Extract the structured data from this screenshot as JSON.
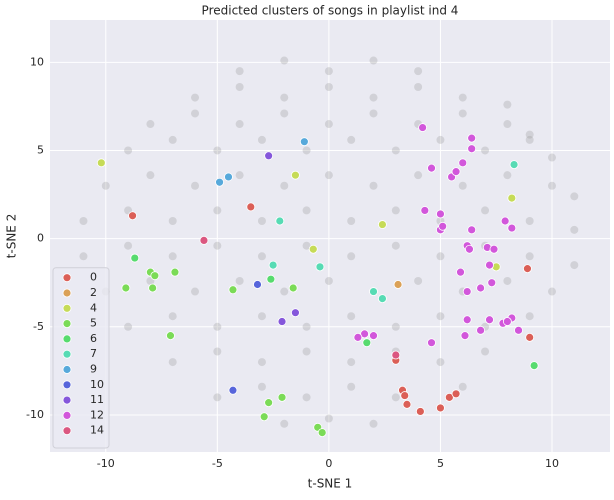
{
  "chart_data": {
    "type": "scatter",
    "title": "Predicted clusters of songs in playlist ind 4",
    "x_label": "t-SNE 1",
    "y_label": "t-SNE 2",
    "xlim": [
      -12.5,
      12.6
    ],
    "ylim": [
      -12.1,
      12.4
    ],
    "xticks": [
      -10,
      -5,
      0,
      5,
      10
    ],
    "yticks": [
      -10,
      -5,
      0,
      5,
      10
    ],
    "grid": true,
    "legend": "lower left",
    "series": [
      {
        "color": "#999999",
        "x": [
          -4,
          -2,
          0,
          2,
          4,
          -6,
          -4,
          -2,
          0,
          2,
          4,
          6,
          8,
          -8,
          -6,
          -4,
          -2,
          0,
          2,
          4,
          6,
          8,
          9,
          -9,
          -7,
          -5,
          -3,
          -1,
          1,
          3,
          5,
          7,
          9,
          10,
          -10,
          -8,
          -6,
          -4,
          -2,
          0,
          2,
          4,
          6,
          8,
          10,
          11,
          -11,
          -9,
          -7,
          -5,
          -3,
          -1,
          1,
          3,
          5,
          7,
          9,
          11,
          -11,
          -9,
          -7,
          -5,
          -3,
          -1,
          1,
          3,
          5,
          7,
          9,
          11,
          -10,
          -8,
          -6,
          -4,
          -2,
          0,
          2,
          4,
          6,
          8,
          10,
          -9,
          -7,
          -5,
          -3,
          -1,
          1,
          3,
          5,
          7,
          9,
          -7,
          -5,
          -3,
          -1,
          1,
          3,
          5,
          7,
          -5,
          -3,
          -1,
          1,
          3,
          6,
          -2,
          0,
          2
        ],
        "y": [
          9.5,
          10.1,
          9.5,
          10.1,
          9.5,
          8,
          8.6,
          8,
          8.6,
          8,
          8.6,
          8,
          7.6,
          6.5,
          7.1,
          6.5,
          7.1,
          6.5,
          7.1,
          6.5,
          7.1,
          6.5,
          5.9,
          5,
          5.6,
          5,
          5.6,
          5,
          5.6,
          5,
          5.6,
          5,
          5.6,
          4.6,
          3,
          3.6,
          3,
          3.6,
          3,
          3.6,
          3,
          3.6,
          3,
          3.6,
          3,
          2.4,
          1,
          1.6,
          1,
          1.6,
          1,
          1.6,
          1,
          1.6,
          1,
          1.6,
          1,
          0.5,
          -1,
          -0.4,
          -1,
          -0.4,
          -1,
          -0.4,
          -1,
          -0.4,
          -1,
          -0.4,
          -1,
          -1.5,
          -3,
          -2.4,
          -3,
          -2.4,
          -3,
          -2.4,
          -3,
          -2.4,
          -3,
          -2.4,
          -3,
          -5,
          -4.4,
          -5,
          -4.4,
          -5,
          -4.4,
          -5,
          -4.4,
          -5,
          -4.4,
          -7,
          -6.4,
          -7,
          -6.4,
          -7,
          -6.4,
          -7,
          -6.4,
          -9,
          -8.4,
          -9,
          -8.4,
          -9,
          -8.4,
          -10.5,
          -10.2,
          -10.5
        ]
      },
      {
        "name": "0",
        "color": "#db5f57",
        "x": [
          -8.8,
          8.9,
          9.0,
          3.3,
          3.4,
          3.5,
          4.1,
          5.0,
          5.4,
          5.7,
          3.0,
          -3.5
        ],
        "y": [
          1.3,
          -1.7,
          -5.6,
          -8.6,
          -8.9,
          -9.4,
          -9.8,
          -9.6,
          -9.0,
          -8.8,
          -6.9,
          1.8
        ]
      },
      {
        "name": "2",
        "color": "#dba157",
        "x": [
          3.1
        ],
        "y": [
          -2.6
        ]
      },
      {
        "name": "4",
        "color": "#c6db57",
        "x": [
          -10.2,
          -1.5,
          2.4,
          7.5,
          8.2,
          -0.7
        ],
        "y": [
          4.3,
          3.6,
          0.8,
          -1.6,
          2.3,
          -0.6
        ]
      },
      {
        "name": "5",
        "color": "#7bdb57",
        "x": [
          -9.1,
          -8.0,
          -7.8,
          -6.9,
          -7.9,
          -4.3,
          -1.6,
          -2.7,
          -2.1,
          -2.9,
          -0.5,
          -0.3,
          -7.1
        ],
        "y": [
          -2.8,
          -1.9,
          -2.1,
          -1.9,
          -2.8,
          -2.9,
          -2.8,
          -9.3,
          -9.0,
          -10.1,
          -10.7,
          -11.0,
          -5.5
        ]
      },
      {
        "name": "6",
        "color": "#57db6e",
        "x": [
          -2.6,
          1.7,
          9.2,
          -8.7
        ],
        "y": [
          -2.3,
          -5.9,
          -7.2,
          -1.1
        ]
      },
      {
        "name": "7",
        "color": "#57dbb4",
        "x": [
          -2.2,
          -2.5,
          -0.4,
          2.0,
          2.4,
          8.3
        ],
        "y": [
          1.0,
          -1.5,
          -1.6,
          -3.0,
          -3.4,
          4.2
        ]
      },
      {
        "name": "9",
        "color": "#57a9db",
        "x": [
          -4.9,
          -4.5,
          -1.1
        ],
        "y": [
          3.2,
          3.5,
          5.5
        ]
      },
      {
        "name": "10",
        "color": "#5765db",
        "x": [
          -3.2,
          -4.3
        ],
        "y": [
          -2.6,
          -8.6
        ]
      },
      {
        "name": "11",
        "color": "#8557db",
        "x": [
          -2.7,
          -2.1,
          -1.5
        ],
        "y": [
          4.7,
          -4.7,
          -4.2
        ]
      },
      {
        "name": "12",
        "color": "#d257db",
        "x": [
          4.2,
          6.4,
          6.4,
          4.6,
          5.5,
          5.7,
          6.0,
          4.3,
          5.0,
          5.0,
          5.1,
          6.4,
          7.9,
          8.2,
          6.2,
          7.1,
          7.4,
          6.3,
          5.9,
          7.2,
          6.2,
          6.8,
          7.3,
          7.8,
          8.2,
          8.0,
          8.5,
          6.2,
          6.1,
          6.8,
          7.2,
          4.6,
          1.6,
          2.0,
          1.3
        ],
        "y": [
          6.3,
          5.7,
          5.1,
          4.0,
          3.5,
          3.8,
          4.3,
          1.6,
          1.4,
          0.5,
          0.7,
          0.5,
          1.0,
          0.6,
          -0.4,
          -0.5,
          -0.6,
          -0.6,
          -1.9,
          -1.5,
          -3.0,
          -2.8,
          -2.5,
          -4.8,
          -4.5,
          -4.7,
          -5.2,
          -4.6,
          -5.5,
          -5.2,
          -4.6,
          -5.9,
          -5.4,
          -5.5,
          -5.6
        ]
      },
      {
        "name": "14",
        "color": "#db5780",
        "x": [
          -5.6,
          3.0
        ],
        "y": [
          -0.1,
          -6.6
        ]
      }
    ]
  }
}
